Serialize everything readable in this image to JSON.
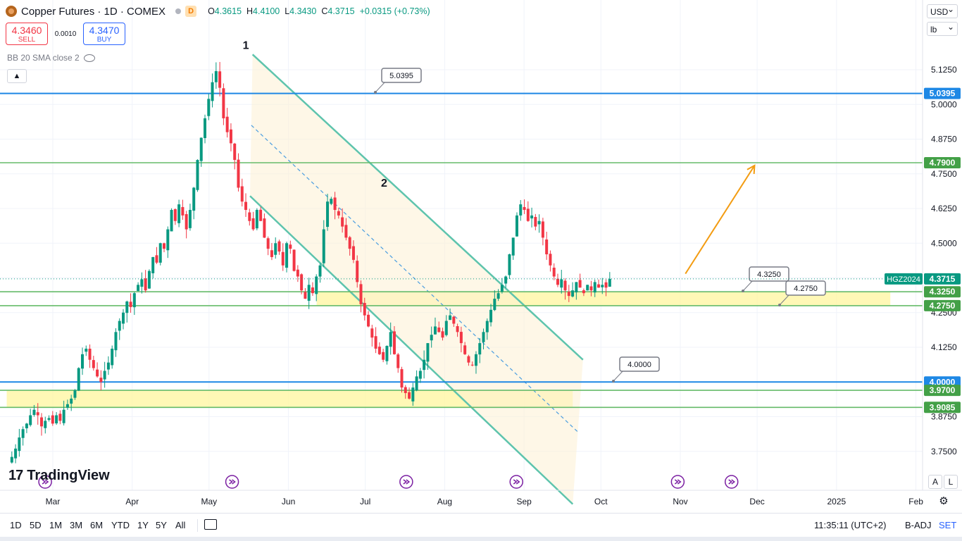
{
  "header": {
    "title": "Copper Futures · 1D · COMEX",
    "badge": "D",
    "o_label": "O",
    "o": "4.3615",
    "h_label": "H",
    "h": "4.4100",
    "l_label": "L",
    "l": "4.3430",
    "c_label": "C",
    "c": "4.3715",
    "change": "+0.0315 (+0.73%)"
  },
  "trade": {
    "sell_price": "4.3460",
    "sell_label": "SELL",
    "spread": "0.0010",
    "buy_price": "4.3470",
    "buy_label": "BUY"
  },
  "indicator": {
    "label": "BB 20 SMA close 2"
  },
  "right_panel": {
    "currency": "USD",
    "unit": "lb",
    "auto": "A",
    "log": "L"
  },
  "watermark": "TradingView",
  "bottom": {
    "timeframes": [
      "1D",
      "5D",
      "1M",
      "3M",
      "6M",
      "YTD",
      "1Y",
      "5Y",
      "All"
    ],
    "clock": "11:35:11 (UTC+2)",
    "adj": "B-ADJ",
    "set": "SET"
  },
  "colors": {
    "up": "#089981",
    "down": "#f23645",
    "channel": "#5ec4ad",
    "blue_line": "#2962ff",
    "green_line": "#4caf50",
    "zone": "#fff59d",
    "arrow": "#f39c12"
  },
  "chart_data": {
    "type": "candlestick",
    "symbol": "HGZ2024",
    "last_price": "4.3715",
    "y_ticks": [
      "5.1250",
      "5.0000",
      "4.8750",
      "4.7500",
      "4.6250",
      "4.5000",
      "4.3750",
      "4.2500",
      "4.1250",
      "4.0000",
      "3.8750",
      "3.7500"
    ],
    "y_tick_values": [
      5.125,
      5.0,
      4.875,
      4.75,
      4.625,
      4.5,
      4.375,
      4.25,
      4.125,
      4.0,
      3.875,
      3.75
    ],
    "ylim": [
      3.6825,
      5.2375
    ],
    "x_months": [
      {
        "label": "Mar",
        "date": "2024-03-01"
      },
      {
        "label": "Apr",
        "date": "2024-04-01"
      },
      {
        "label": "May",
        "date": "2024-05-01"
      },
      {
        "label": "Jun",
        "date": "2024-06-01"
      },
      {
        "label": "Jul",
        "date": "2024-07-01"
      },
      {
        "label": "Aug",
        "date": "2024-08-01"
      },
      {
        "label": "Sep",
        "date": "2024-09-01"
      },
      {
        "label": "Oct",
        "date": "2024-10-01"
      },
      {
        "label": "Nov",
        "date": "2024-11-01"
      },
      {
        "label": "Dec",
        "date": "2024-12-01"
      },
      {
        "label": "2025",
        "date": "2025-01-01"
      },
      {
        "label": "Feb",
        "date": "2025-02-01"
      }
    ],
    "xlim": [
      "2024-02-12",
      "2025-02-22"
    ],
    "first_candle_date": "2024-02-14",
    "candles_close": [
      3.73,
      3.76,
      3.8,
      3.83,
      3.85,
      3.88,
      3.9,
      3.88,
      3.84,
      3.86,
      3.87,
      3.85,
      3.88,
      3.86,
      3.9,
      3.92,
      3.94,
      3.97,
      4.05,
      4.1,
      4.12,
      4.08,
      4.05,
      4.02,
      4.0,
      4.04,
      4.07,
      4.12,
      4.18,
      4.22,
      4.25,
      4.29,
      4.27,
      4.32,
      4.35,
      4.37,
      4.33,
      4.4,
      4.45,
      4.43,
      4.5,
      4.48,
      4.55,
      4.62,
      4.58,
      4.64,
      4.6,
      4.55,
      4.62,
      4.7,
      4.8,
      4.88,
      4.95,
      5.02,
      5.08,
      5.12,
      5.06,
      4.95,
      4.9,
      4.86,
      4.8,
      4.7,
      4.65,
      4.62,
      4.58,
      4.55,
      4.62,
      4.58,
      4.52,
      4.48,
      4.45,
      4.5,
      4.47,
      4.42,
      4.5,
      4.48,
      4.4,
      4.38,
      4.33,
      4.3,
      4.35,
      4.32,
      4.38,
      4.42,
      4.55,
      4.65,
      4.66,
      4.62,
      4.6,
      4.56,
      4.52,
      4.48,
      4.44,
      4.36,
      4.28,
      4.24,
      4.2,
      4.16,
      4.12,
      4.1,
      4.08,
      4.13,
      4.18,
      4.1,
      4.05,
      3.98,
      3.96,
      3.94,
      3.98,
      4.02,
      4.04,
      4.08,
      4.14,
      4.17,
      4.2,
      4.18,
      4.16,
      4.22,
      4.24,
      4.21,
      4.18,
      4.14,
      4.1,
      4.07,
      4.06,
      4.1,
      4.14,
      4.18,
      4.22,
      4.26,
      4.3,
      4.32,
      4.35,
      4.38,
      4.46,
      4.52,
      4.6,
      4.64,
      4.62,
      4.58,
      4.6,
      4.56,
      4.58,
      4.52,
      4.46,
      4.42,
      4.38,
      4.35,
      4.37,
      4.33,
      4.31,
      4.33,
      4.36,
      4.34,
      4.32,
      4.35,
      4.33,
      4.36,
      4.34,
      4.35,
      4.34,
      4.3715
    ],
    "horizontal_levels": [
      {
        "value": 5.0395,
        "label": "5.0395",
        "color": "blue",
        "callout": "5.0395"
      },
      {
        "value": 4.79,
        "label": "4.7900",
        "color": "green"
      },
      {
        "value": 4.325,
        "label": "4.3250",
        "color": "green",
        "callout": "4.3250"
      },
      {
        "value": 4.275,
        "label": "4.2750",
        "color": "green",
        "callout": "4.2750"
      },
      {
        "value": 4.0,
        "label": "4.0000",
        "color": "blue",
        "callout": "4.0000"
      },
      {
        "value": 3.97,
        "label": "3.9700",
        "color": "green"
      },
      {
        "value": 3.9085,
        "label": "3.9085",
        "color": "green"
      }
    ],
    "zones": [
      {
        "from": 4.275,
        "to": 4.325,
        "start": "2024-06-12",
        "end": "2025-01-22"
      },
      {
        "from": 3.9085,
        "to": 3.97,
        "start": "2024-02-12",
        "end": "2024-09-20"
      }
    ],
    "channel_labels": [
      "1",
      "2"
    ],
    "channel": {
      "upper": [
        [
          "2024-05-18",
          5.18
        ],
        [
          "2024-09-24",
          4.08
        ]
      ],
      "lower": [
        [
          "2024-05-17",
          4.67
        ],
        [
          "2024-09-20",
          3.56
        ]
      ]
    },
    "projection_arrow": [
      [
        "2024-11-03",
        4.39
      ],
      [
        "2024-11-30",
        4.78
      ]
    ],
    "event_markers": [
      "2024-02-27",
      "2024-05-10",
      "2024-07-17",
      "2024-08-29",
      "2024-10-31",
      "2024-11-21"
    ]
  }
}
